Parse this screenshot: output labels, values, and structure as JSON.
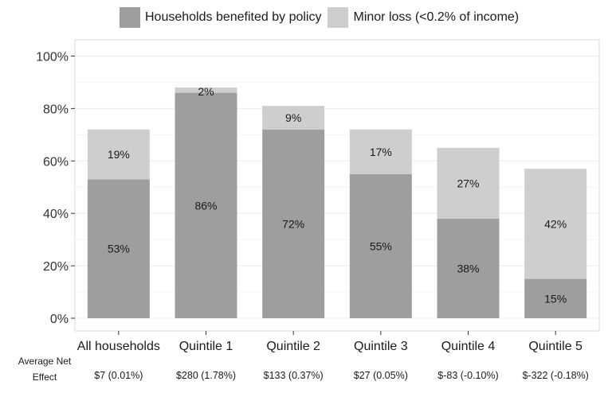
{
  "chart_data": {
    "type": "bar",
    "stacked": true,
    "categories": [
      "All households",
      "Quintile 1",
      "Quintile 2",
      "Quintile 3",
      "Quintile 4",
      "Quintile 5"
    ],
    "series": [
      {
        "name": "Households benefited by policy",
        "values": [
          53,
          86,
          72,
          55,
          38,
          15
        ],
        "labels": [
          "53%",
          "86%",
          "72%",
          "55%",
          "38%",
          "15%"
        ],
        "color": "#9e9e9e"
      },
      {
        "name": "Minor loss (<0.2% of income)",
        "values": [
          19,
          2,
          9,
          17,
          27,
          42
        ],
        "labels": [
          "19%",
          "2%",
          "9%",
          "17%",
          "27%",
          "42%"
        ],
        "color": "#cecece"
      }
    ],
    "ylim": [
      0,
      100
    ],
    "yticks": [
      0,
      20,
      40,
      60,
      80,
      100
    ],
    "ytick_labels": [
      "0%",
      "20%",
      "40%",
      "60%",
      "80%",
      "100%"
    ],
    "grid": true,
    "legend_position": "top",
    "net_effect_title_lines": [
      "Average Net",
      "Effect"
    ],
    "net_effect_values": [
      "$7 (0.01%)",
      "$280 (1.78%)",
      "$133 (0.37%)",
      "$27 (0.05%)",
      "$-83 (-0.10%)",
      "$-322 (-0.18%)"
    ]
  }
}
